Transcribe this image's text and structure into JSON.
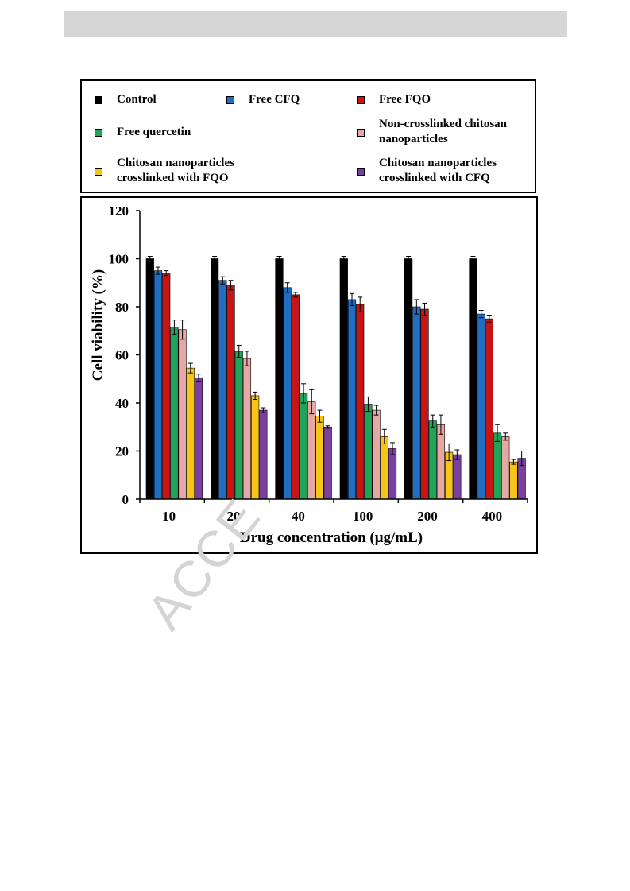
{
  "watermark": "ACCE",
  "legend_colors": [
    "#000000",
    "#1f6ec2",
    "#c81414",
    "#1fa45a",
    "#e5a8a2",
    "#f5c518",
    "#7a3fa0"
  ],
  "chart_data": {
    "type": "bar",
    "categories": [
      "10",
      "20",
      "40",
      "100",
      "200",
      "400"
    ],
    "xlabel": "Drug concentration (μg/mL)",
    "ylabel": "Cell viability (%)",
    "ylim": [
      0,
      120
    ],
    "yticks": [
      0,
      20,
      40,
      60,
      80,
      100,
      120
    ],
    "error_bars": true,
    "legend_placement": "top (separate box)",
    "series": [
      {
        "name": "Control",
        "color": "#000000",
        "values": [
          100,
          100,
          100,
          100,
          100,
          100
        ],
        "errors": [
          1,
          1,
          1,
          1,
          1,
          1
        ]
      },
      {
        "name": "Free CFQ",
        "color": "#1f6ec2",
        "values": [
          95,
          91,
          88,
          83,
          80,
          77
        ],
        "errors": [
          1.5,
          1.5,
          2,
          2.5,
          3,
          1.5
        ]
      },
      {
        "name": "Free FQO",
        "color": "#c81414",
        "values": [
          94,
          89,
          85,
          81,
          79,
          75
        ],
        "errors": [
          1,
          2,
          1,
          3,
          2.5,
          1.5
        ]
      },
      {
        "name": "Free quercetin",
        "color": "#1fa45a",
        "values": [
          71.5,
          61.5,
          44,
          39.5,
          32.5,
          27.5
        ],
        "errors": [
          3,
          2.5,
          4,
          3,
          2.5,
          3.5
        ]
      },
      {
        "name": "Non-crosslinked chitosan\nnanoparticles",
        "color": "#e5a8a2",
        "values": [
          70.5,
          58.5,
          40.5,
          37,
          31,
          26
        ],
        "errors": [
          4,
          3,
          5,
          2,
          4,
          1.5
        ]
      },
      {
        "name": "Chitosan nanoparticles\ncrosslinked with FQO",
        "color": "#f5c518",
        "values": [
          54.5,
          43,
          34.5,
          26,
          19.5,
          15.5
        ],
        "errors": [
          2,
          1.5,
          2.5,
          3,
          3.5,
          1
        ]
      },
      {
        "name": "Chitosan nanoparticles\ncrosslinked with CFQ",
        "color": "#7a3fa0",
        "values": [
          50.5,
          37,
          30,
          21,
          18.5,
          17
        ],
        "errors": [
          1.5,
          1,
          0.5,
          2.5,
          2,
          3
        ]
      }
    ]
  }
}
